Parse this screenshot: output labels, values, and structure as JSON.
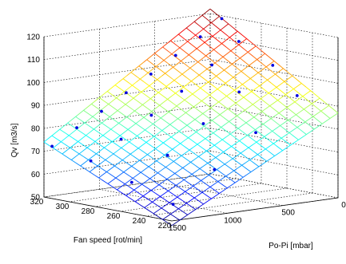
{
  "chart_data": {
    "type": "surface3d",
    "zlabel": "Qv [m3/s]",
    "xlabel": "Po-Pi [mbar]",
    "ylabel": "Fan speed  [rot/min]",
    "x_ticks": [
      "0",
      "500",
      "1000",
      "1500"
    ],
    "y_ticks": [
      "220",
      "240",
      "260",
      "280",
      "300",
      "320"
    ],
    "z_ticks": [
      "50",
      "60",
      "70",
      "80",
      "90",
      "100",
      "110",
      "120"
    ],
    "xlim": [
      0,
      1500
    ],
    "ylim": [
      220,
      320
    ],
    "zlim": [
      50,
      120
    ],
    "grid": true,
    "surface": {
      "colormap": "jet",
      "corners": [
        {
          "po_pi": 1500,
          "fan_speed": 320,
          "qv": 74
        },
        {
          "po_pi": 0,
          "fan_speed": 320,
          "qv": 122
        },
        {
          "po_pi": 0,
          "fan_speed": 220,
          "qv": 87
        },
        {
          "po_pi": 1500,
          "fan_speed": 220,
          "qv": 48
        }
      ],
      "mesh_lines_fan_speed": 15,
      "mesh_lines_po_pi": 22
    },
    "points": [
      {
        "po_pi": 1450,
        "fan_speed": 318,
        "qv": 72
      },
      {
        "po_pi": 1250,
        "fan_speed": 316,
        "qv": 79
      },
      {
        "po_pi": 1050,
        "fan_speed": 314,
        "qv": 85
      },
      {
        "po_pi": 850,
        "fan_speed": 312,
        "qv": 92
      },
      {
        "po_pi": 650,
        "fan_speed": 310,
        "qv": 99
      },
      {
        "po_pi": 450,
        "fan_speed": 308,
        "qv": 106
      },
      {
        "po_pi": 250,
        "fan_speed": 306,
        "qv": 113
      },
      {
        "po_pi": 80,
        "fan_speed": 304,
        "qv": 120
      },
      {
        "po_pi": 1400,
        "fan_speed": 292,
        "qv": 68
      },
      {
        "po_pi": 1150,
        "fan_speed": 290,
        "qv": 76
      },
      {
        "po_pi": 900,
        "fan_speed": 288,
        "qv": 85
      },
      {
        "po_pi": 650,
        "fan_speed": 286,
        "qv": 94
      },
      {
        "po_pi": 400,
        "fan_speed": 284,
        "qv": 104
      },
      {
        "po_pi": 180,
        "fan_speed": 282,
        "qv": 113
      },
      {
        "po_pi": 1400,
        "fan_speed": 260,
        "qv": 62
      },
      {
        "po_pi": 1100,
        "fan_speed": 258,
        "qv": 72
      },
      {
        "po_pi": 800,
        "fan_speed": 256,
        "qv": 84
      },
      {
        "po_pi": 500,
        "fan_speed": 254,
        "qv": 96
      },
      {
        "po_pi": 220,
        "fan_speed": 252,
        "qv": 106
      },
      {
        "po_pi": 1350,
        "fan_speed": 232,
        "qv": 55
      },
      {
        "po_pi": 1000,
        "fan_speed": 230,
        "qv": 68
      },
      {
        "po_pi": 650,
        "fan_speed": 228,
        "qv": 82
      },
      {
        "po_pi": 300,
        "fan_speed": 226,
        "qv": 96
      }
    ]
  }
}
